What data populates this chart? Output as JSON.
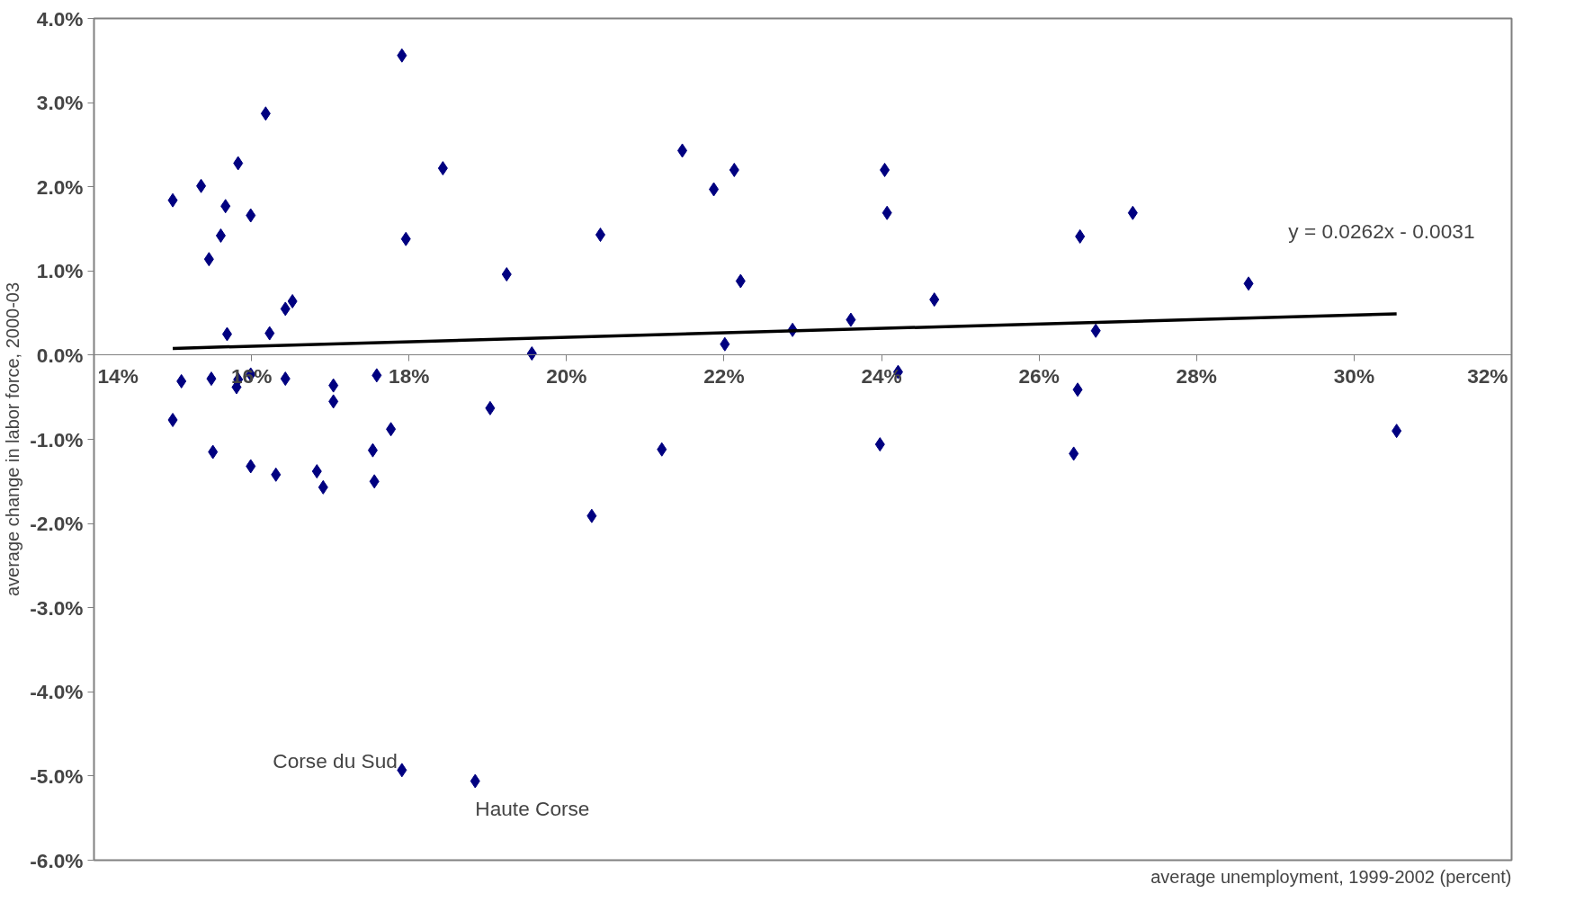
{
  "chart_data": {
    "type": "scatter",
    "xlabel": "average unemployment, 1999-2002 (percent)",
    "ylabel": "average change in labor force, 2000-03",
    "grid": false,
    "xlim": [
      14,
      32
    ],
    "ylim": [
      -6,
      4
    ],
    "xticks": [
      {
        "value": 14,
        "label": "14%"
      },
      {
        "value": 16,
        "label": "16%"
      },
      {
        "value": 18,
        "label": "18%"
      },
      {
        "value": 20,
        "label": "20%"
      },
      {
        "value": 22,
        "label": "22%"
      },
      {
        "value": 24,
        "label": "24%"
      },
      {
        "value": 26,
        "label": "26%"
      },
      {
        "value": 28,
        "label": "28%"
      },
      {
        "value": 30,
        "label": "30%"
      },
      {
        "value": 32,
        "label": "32%"
      }
    ],
    "yticks": [
      {
        "value": -6,
        "label": "-6.0%"
      },
      {
        "value": -5,
        "label": "-5.0%"
      },
      {
        "value": -4,
        "label": "-4.0%"
      },
      {
        "value": -3,
        "label": "-3.0%"
      },
      {
        "value": -2,
        "label": "-2.0%"
      },
      {
        "value": -1,
        "label": "-1.0%"
      },
      {
        "value": 0,
        "label": "0.0%"
      },
      {
        "value": 1,
        "label": "1.0%"
      },
      {
        "value": 2,
        "label": "2.0%"
      },
      {
        "value": 3,
        "label": "3.0%"
      },
      {
        "value": 4,
        "label": "4.0%"
      }
    ],
    "series": [
      {
        "marker": "diamond",
        "color": "#000080",
        "x": [
          15.0,
          15.0,
          15.11,
          15.36,
          15.46,
          15.49,
          15.51,
          15.61,
          15.67,
          15.69,
          15.83,
          15.83,
          15.81,
          15.99,
          15.99,
          15.99,
          16.18,
          16.23,
          16.31,
          16.43,
          16.43,
          16.52,
          16.83,
          16.91,
          17.04,
          17.04,
          17.54,
          17.56,
          17.59,
          17.77,
          17.91,
          17.96,
          17.91,
          18.43,
          18.84,
          19.03,
          19.24,
          19.56,
          20.32,
          20.43,
          21.21,
          21.47,
          21.87,
          22.01,
          22.13,
          22.21,
          22.87,
          23.61,
          23.98,
          24.04,
          24.07,
          24.21,
          24.67,
          26.44,
          26.49,
          26.52,
          26.72,
          27.19,
          28.66,
          30.54
        ],
        "values": [
          1.84,
          -0.77,
          -0.31,
          2.01,
          1.14,
          -0.28,
          -1.15,
          1.42,
          1.77,
          0.25,
          2.28,
          -0.29,
          -0.38,
          1.66,
          -0.23,
          -1.32,
          2.87,
          0.26,
          -1.42,
          0.55,
          -0.28,
          0.64,
          -1.38,
          -1.57,
          -0.36,
          -0.55,
          -1.13,
          -1.5,
          -0.24,
          -0.88,
          3.56,
          1.38,
          -4.93,
          2.22,
          -5.06,
          -0.63,
          0.96,
          0.02,
          -1.91,
          1.43,
          -1.12,
          2.43,
          1.97,
          0.13,
          2.2,
          0.88,
          0.3,
          0.42,
          -1.06,
          2.2,
          1.69,
          -0.2,
          0.66,
          -1.17,
          -0.41,
          1.41,
          0.29,
          1.69,
          0.85,
          -0.9
        ]
      },
      {
        "type": "line",
        "color": "#000000",
        "x": [
          15.0,
          30.54
        ],
        "values": [
          0.08,
          0.49
        ]
      }
    ],
    "annotations": [
      "y = 0.0262x - 0.0031",
      {
        "text": "Corse du Sud",
        "x": 17.91,
        "y": -4.93
      },
      {
        "text": "Haute Corse",
        "x": 18.84,
        "y": -5.06
      }
    ]
  }
}
